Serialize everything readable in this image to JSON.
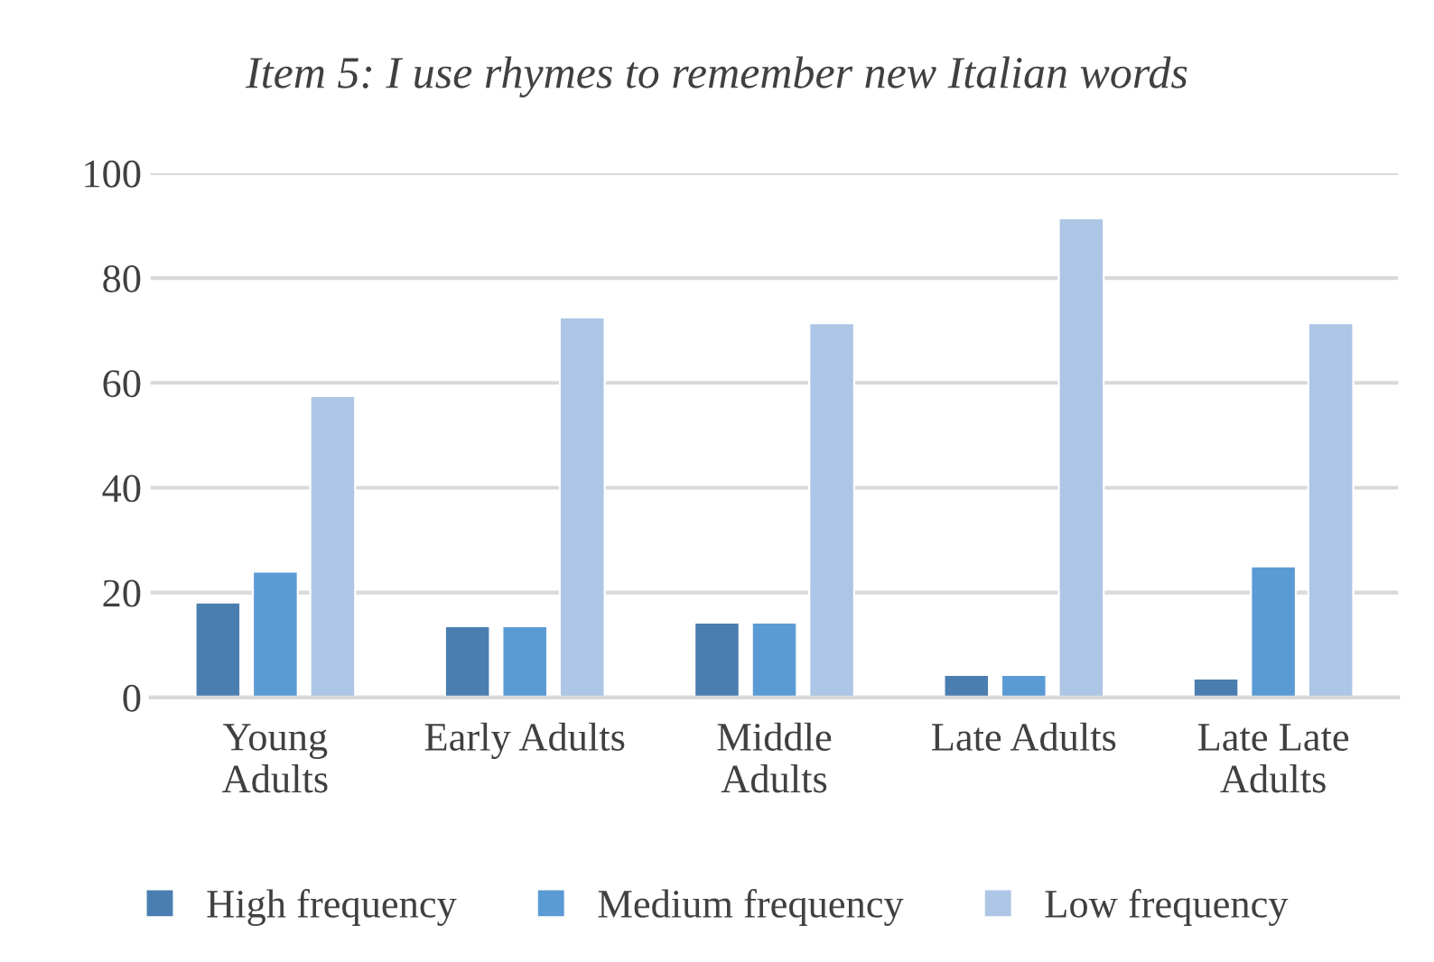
{
  "chart_data": {
    "type": "bar",
    "title": "Item 5: I use rhymes to remember new Italian words",
    "categories": [
      "Young\nAdults",
      "Early Adults",
      "Middle\nAdults",
      "Late Adults",
      "Late Late\nAdults"
    ],
    "series": [
      {
        "name": "High frequency",
        "color": "#4a7eb0",
        "values": [
          18.1,
          13.6,
          14.3,
          4.3,
          3.6
        ]
      },
      {
        "name": "Medium frequency",
        "color": "#5b9bd5",
        "values": [
          24.0,
          13.6,
          14.3,
          4.3,
          25.0
        ]
      },
      {
        "name": "Low frequency",
        "color": "#adc6e5",
        "values": [
          57.5,
          72.5,
          71.4,
          91.4,
          71.4
        ]
      }
    ],
    "ylim": [
      0,
      100
    ],
    "yticks": [
      0,
      20,
      40,
      60,
      80,
      100
    ],
    "grid": "y",
    "legend": "bottom"
  }
}
